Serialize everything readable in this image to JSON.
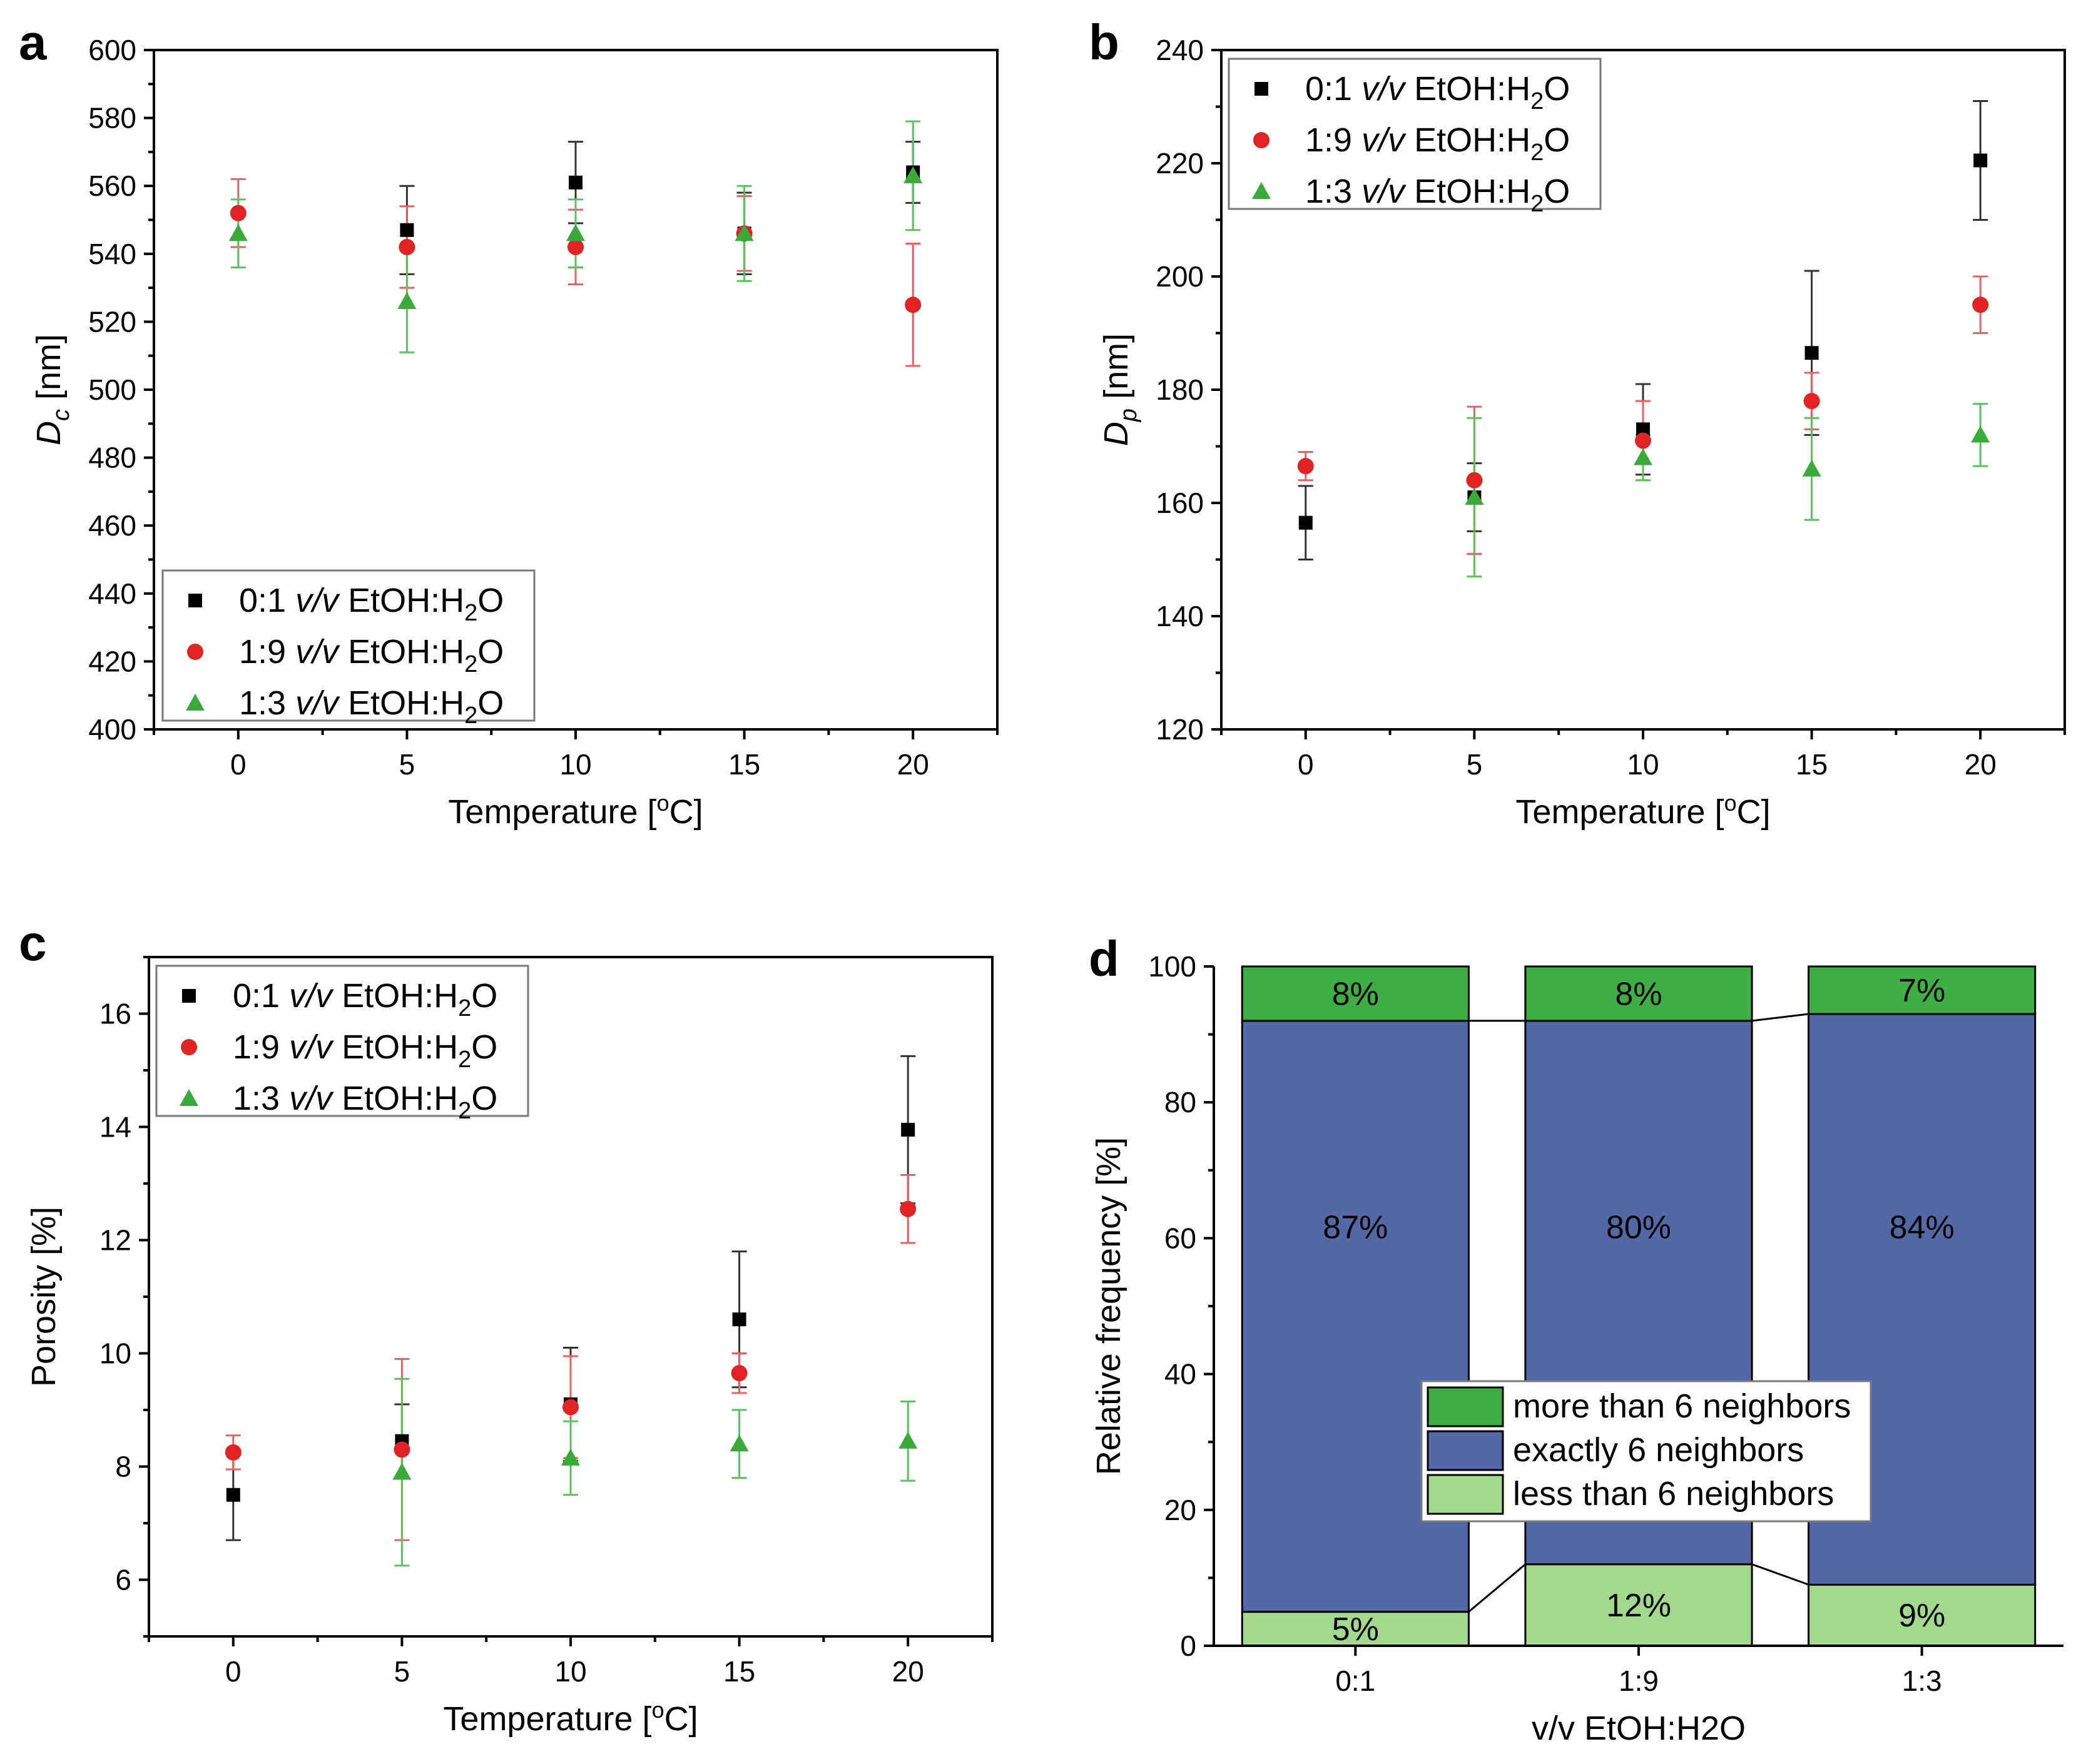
{
  "colors": {
    "black": "#000000",
    "red": "#e02424",
    "green": "#3aaa3a",
    "dark_green": "#3fae46",
    "blue": "#5468a8",
    "light_green": "#a3d98f",
    "red_err": "#e86060",
    "green_err": "#5cc05c"
  },
  "series_legend": [
    {
      "ratio": "0:1",
      "vv": "v/v",
      "rest": "EtOH:H",
      "sub": "2",
      "end": "O",
      "marker": "square",
      "color": "#000000"
    },
    {
      "ratio": "1:9",
      "vv": "v/v",
      "rest": "EtOH:H",
      "sub": "2",
      "end": "O",
      "marker": "circle",
      "color": "#e02424"
    },
    {
      "ratio": "1:3",
      "vv": "v/v",
      "rest": "EtOH:H",
      "sub": "2",
      "end": "O",
      "marker": "triangle",
      "color": "#3aaa3a"
    }
  ],
  "chart_data": [
    {
      "panel": "a",
      "type": "scatter",
      "xlabel": "Temperature [°C]",
      "xlabel_parts": {
        "pre": "Temperature [",
        "sup": "o",
        "post": "C]"
      },
      "ylabel": "Dc [nm]",
      "ylabel_parts": {
        "main": "D",
        "sub": "c",
        "post": " [nm]"
      },
      "xlim": [
        -2.5,
        22.5
      ],
      "ylim": [
        400,
        600
      ],
      "xticks": [
        0,
        5,
        10,
        15,
        20
      ],
      "yticks": [
        400,
        420,
        440,
        460,
        480,
        500,
        520,
        540,
        560,
        580,
        600
      ],
      "legend_position": "bottom-left",
      "series": [
        {
          "name": "0:1 v/v EtOH:H2O",
          "marker": "square",
          "x": [
            0,
            5,
            10,
            15,
            20
          ],
          "y": [
            null,
            547,
            561,
            546,
            564
          ],
          "err": [
            null,
            13,
            12,
            12,
            9
          ]
        },
        {
          "name": "1:9 v/v EtOH:H2O",
          "marker": "circle",
          "x": [
            0,
            5,
            10,
            15,
            20
          ],
          "y": [
            552,
            542,
            542,
            546,
            525
          ],
          "err": [
            10,
            12,
            11,
            11,
            18
          ]
        },
        {
          "name": "1:3 v/v EtOH:H2O",
          "marker": "triangle",
          "x": [
            0,
            5,
            10,
            15,
            20
          ],
          "y": [
            546,
            526,
            546,
            546,
            563
          ],
          "err": [
            10,
            15,
            10,
            14,
            16
          ]
        }
      ]
    },
    {
      "panel": "b",
      "type": "scatter",
      "xlabel": "Temperature [°C]",
      "xlabel_parts": {
        "pre": "Temperature [",
        "sup": "o",
        "post": "C]"
      },
      "ylabel": "Dp [nm]",
      "ylabel_parts": {
        "main": "D",
        "sub": "p",
        "post": " [nm]"
      },
      "xlim": [
        -2.5,
        22.5
      ],
      "ylim": [
        120,
        240
      ],
      "xticks": [
        0,
        5,
        10,
        15,
        20
      ],
      "yticks": [
        120,
        140,
        160,
        180,
        200,
        220,
        240
      ],
      "legend_position": "top-left",
      "series": [
        {
          "name": "0:1 v/v EtOH:H2O",
          "marker": "square",
          "x": [
            0,
            5,
            10,
            15,
            20
          ],
          "y": [
            156.5,
            161,
            173,
            186.5,
            220.5
          ],
          "err": [
            6.5,
            6,
            8,
            14.5,
            10.5
          ]
        },
        {
          "name": "1:9 v/v EtOH:H2O",
          "marker": "circle",
          "x": [
            0,
            5,
            10,
            15,
            20
          ],
          "y": [
            166.5,
            164,
            171,
            178,
            195
          ],
          "err": [
            2.5,
            13,
            7,
            5,
            5
          ]
        },
        {
          "name": "1:3 v/v EtOH:H2O",
          "marker": "triangle",
          "x": [
            0,
            5,
            10,
            15,
            20
          ],
          "y": [
            null,
            161,
            168,
            166,
            172
          ],
          "err": [
            null,
            14,
            4,
            9,
            5.5
          ]
        }
      ]
    },
    {
      "panel": "c",
      "type": "scatter",
      "xlabel": "Temperature [°C]",
      "xlabel_parts": {
        "pre": "Temperature [",
        "sup": "o",
        "post": "C]"
      },
      "ylabel": "Porosity [%]",
      "xlim": [
        -2.5,
        22.5
      ],
      "ylim": [
        5,
        17
      ],
      "xticks": [
        0,
        5,
        10,
        15,
        20
      ],
      "yticks": [
        6,
        8,
        10,
        12,
        14,
        16
      ],
      "legend_position": "top-left",
      "series": [
        {
          "name": "0:1 v/v EtOH:H2O",
          "marker": "square",
          "x": [
            0,
            5,
            10,
            15,
            20
          ],
          "y": [
            7.5,
            8.45,
            9.1,
            10.6,
            13.95
          ],
          "err": [
            0.8,
            0.65,
            1.0,
            1.2,
            1.3
          ]
        },
        {
          "name": "1:9 v/v EtOH:H2O",
          "marker": "circle",
          "x": [
            0,
            5,
            10,
            15,
            20
          ],
          "y": [
            8.25,
            8.3,
            9.05,
            9.65,
            12.55
          ],
          "err": [
            0.3,
            1.6,
            0.9,
            0.35,
            0.6
          ]
        },
        {
          "name": "1:3 v/v EtOH:H2O",
          "marker": "triangle",
          "x": [
            0,
            5,
            10,
            15,
            20
          ],
          "y": [
            null,
            7.9,
            8.15,
            8.4,
            8.45
          ],
          "err": [
            null,
            1.65,
            0.65,
            0.6,
            0.7
          ]
        }
      ]
    },
    {
      "panel": "d",
      "type": "bar",
      "stacked": true,
      "xlabel": "v/v EtOH:H2O",
      "ylabel": "Relative frequency [%]",
      "ylim": [
        0,
        100
      ],
      "yticks": [
        0,
        20,
        40,
        60,
        80,
        100
      ],
      "categories": [
        "0:1",
        "1:9",
        "1:3"
      ],
      "legend_position": "center-right",
      "series": [
        {
          "name": "less than 6 neighbors",
          "values": [
            5,
            12,
            9
          ],
          "labels": [
            "5%",
            "12%",
            "9%"
          ],
          "color": "#a3d98f"
        },
        {
          "name": "exactly 6 neighbors",
          "values": [
            87,
            80,
            84
          ],
          "labels": [
            "87%",
            "80%",
            "84%"
          ],
          "color": "#5468a8"
        },
        {
          "name": "more than 6 neighbors",
          "values": [
            8,
            8,
            7
          ],
          "labels": [
            "8%",
            "8%",
            "7%"
          ],
          "color": "#3fae46"
        }
      ],
      "legend_order": [
        "more than 6 neighbors",
        "exactly 6 neighbors",
        "less than 6 neighbors"
      ]
    }
  ]
}
